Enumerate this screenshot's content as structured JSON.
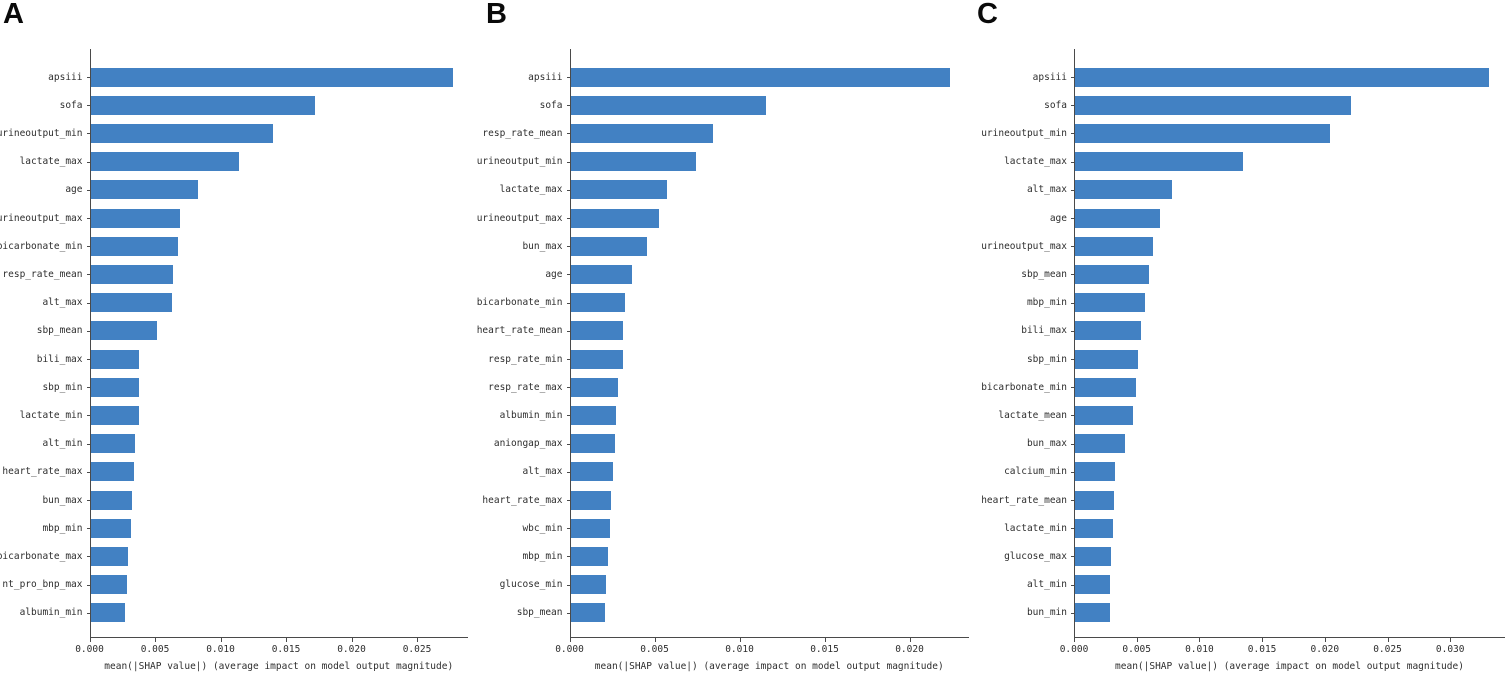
{
  "figure": {
    "bar_color": "#4281c3",
    "axis_color": "#4a4a4a",
    "text_color": "#2e2e2e",
    "background_color": "#ffffff"
  },
  "chart_data": [
    {
      "type": "bar",
      "panel_label": "A",
      "orientation": "horizontal",
      "title": "",
      "xlabel": "mean(|SHAP value|) (average impact on model output magnitude)",
      "ylabel": "",
      "xlim": [
        0,
        0.0289
      ],
      "xticks": [
        "0.000",
        "0.005",
        "0.010",
        "0.015",
        "0.020",
        "0.025"
      ],
      "grid": false,
      "legend": false,
      "categories": [
        "apsiii",
        "sofa",
        "urineoutput_min",
        "lactate_max",
        "age",
        "urineoutput_max",
        "bicarbonate_min",
        "resp_rate_mean",
        "alt_max",
        "sbp_mean",
        "bili_max",
        "sbp_min",
        "lactate_min",
        "alt_min",
        "heart_rate_max",
        "bun_max",
        "mbp_min",
        "bicarbonate_max",
        "nt_pro_bnp_max",
        "albumin_min"
      ],
      "values": [
        0.0277,
        0.0171,
        0.0139,
        0.0113,
        0.0082,
        0.0068,
        0.0067,
        0.0063,
        0.0062,
        0.0051,
        0.0037,
        0.0037,
        0.0037,
        0.0034,
        0.0033,
        0.0032,
        0.0031,
        0.0029,
        0.0028,
        0.0026
      ]
    },
    {
      "type": "bar",
      "panel_label": "B",
      "orientation": "horizontal",
      "title": "",
      "xlabel": "mean(|SHAP value|) (average impact on model output magnitude)",
      "ylabel": "",
      "xlim": [
        0,
        0.0235
      ],
      "xticks": [
        "0.000",
        "0.005",
        "0.010",
        "0.015",
        "0.020"
      ],
      "grid": false,
      "legend": false,
      "categories": [
        "apsiii",
        "sofa",
        "resp_rate_mean",
        "urineoutput_min",
        "lactate_max",
        "urineoutput_max",
        "bun_max",
        "age",
        "bicarbonate_min",
        "heart_rate_mean",
        "resp_rate_min",
        "resp_rate_max",
        "albumin_min",
        "aniongap_max",
        "alt_max",
        "heart_rate_max",
        "wbc_min",
        "mbp_min",
        "glucose_min",
        "sbp_mean"
      ],
      "values": [
        0.0223,
        0.0115,
        0.0084,
        0.0074,
        0.0057,
        0.0052,
        0.0045,
        0.0036,
        0.0032,
        0.0031,
        0.0031,
        0.0028,
        0.0027,
        0.0026,
        0.0025,
        0.0024,
        0.0023,
        0.0022,
        0.0021,
        0.002
      ]
    },
    {
      "type": "bar",
      "panel_label": "C",
      "orientation": "horizontal",
      "title": "",
      "xlabel": "mean(|SHAP value|) (average impact on model output magnitude)",
      "ylabel": "",
      "xlim": [
        0,
        0.0344
      ],
      "xticks": [
        "0.000",
        "0.005",
        "0.010",
        "0.015",
        "0.020",
        "0.025",
        "0.030"
      ],
      "grid": false,
      "legend": false,
      "categories": [
        "apsiii",
        "sofa",
        "urineoutput_min",
        "lactate_max",
        "alt_max",
        "age",
        "urineoutput_max",
        "sbp_mean",
        "mbp_min",
        "bili_max",
        "sbp_min",
        "bicarbonate_min",
        "lactate_mean",
        "bun_max",
        "calcium_min",
        "heart_rate_mean",
        "lactate_min",
        "glucose_max",
        "alt_min",
        "bun_min"
      ],
      "values": [
        0.033,
        0.022,
        0.0203,
        0.0134,
        0.0077,
        0.0068,
        0.0062,
        0.0059,
        0.0056,
        0.0053,
        0.005,
        0.0049,
        0.0046,
        0.004,
        0.0032,
        0.0031,
        0.003,
        0.0029,
        0.0028,
        0.0028
      ]
    }
  ]
}
